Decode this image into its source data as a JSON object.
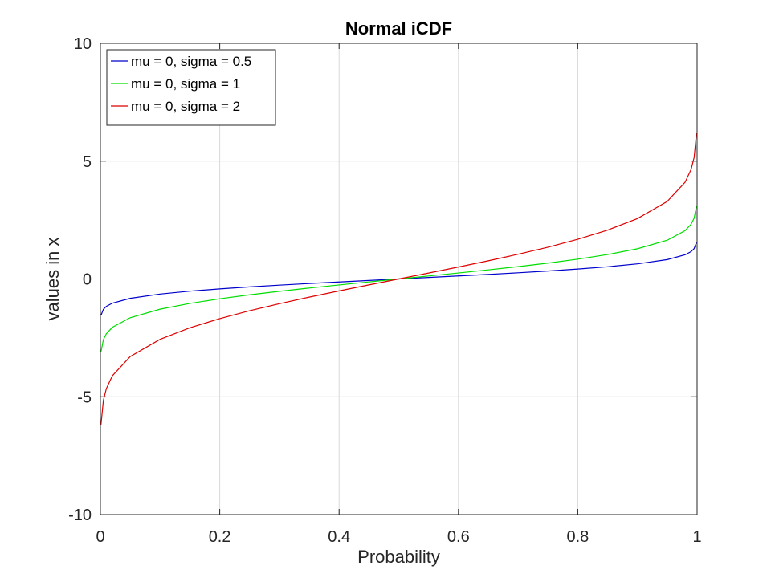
{
  "chart_data": {
    "type": "line",
    "title": "Normal iCDF",
    "xlabel": "Probability",
    "ylabel": "values in x",
    "xlim": [
      0,
      1
    ],
    "ylim": [
      -10,
      10
    ],
    "xticks": [
      0,
      0.2,
      0.4,
      0.6,
      0.8,
      1
    ],
    "xtick_labels": [
      "0",
      "0.2",
      "0.4",
      "0.6",
      "0.8",
      "1"
    ],
    "yticks": [
      -10,
      -5,
      0,
      5,
      10
    ],
    "ytick_labels": [
      "-10",
      "-5",
      "0",
      "5",
      "10"
    ],
    "grid": true,
    "legend_position": "top-left",
    "x": [
      0.001,
      0.005,
      0.01,
      0.02,
      0.05,
      0.1,
      0.15,
      0.2,
      0.25,
      0.3,
      0.35,
      0.4,
      0.45,
      0.5,
      0.55,
      0.6,
      0.65,
      0.7,
      0.75,
      0.8,
      0.85,
      0.9,
      0.95,
      0.98,
      0.99,
      0.995,
      0.999
    ],
    "series": [
      {
        "name": "mu = 0, sigma = 0.5",
        "color": "#0000cc",
        "values": [
          -1.545,
          -1.288,
          -1.163,
          -1.027,
          -0.822,
          -0.641,
          -0.518,
          -0.421,
          -0.337,
          -0.262,
          -0.193,
          -0.127,
          -0.063,
          0,
          0.063,
          0.127,
          0.193,
          0.262,
          0.337,
          0.421,
          0.518,
          0.641,
          0.822,
          1.027,
          1.163,
          1.288,
          1.545
        ]
      },
      {
        "name": "mu = 0, sigma = 1",
        "color": "#00dd00",
        "values": [
          -3.09,
          -2.576,
          -2.326,
          -2.054,
          -1.645,
          -1.282,
          -1.036,
          -0.842,
          -0.674,
          -0.524,
          -0.385,
          -0.253,
          -0.126,
          0,
          0.126,
          0.253,
          0.385,
          0.524,
          0.674,
          0.842,
          1.036,
          1.282,
          1.645,
          2.054,
          2.326,
          2.576,
          3.09
        ]
      },
      {
        "name": "mu = 0, sigma = 2",
        "color": "#dd0000",
        "values": [
          -6.18,
          -5.152,
          -4.652,
          -4.108,
          -3.29,
          -2.563,
          -2.073,
          -1.683,
          -1.349,
          -1.049,
          -0.771,
          -0.507,
          -0.251,
          0,
          0.251,
          0.507,
          0.771,
          1.049,
          1.349,
          1.683,
          2.073,
          2.563,
          3.29,
          4.108,
          4.652,
          5.152,
          6.18
        ]
      }
    ]
  }
}
